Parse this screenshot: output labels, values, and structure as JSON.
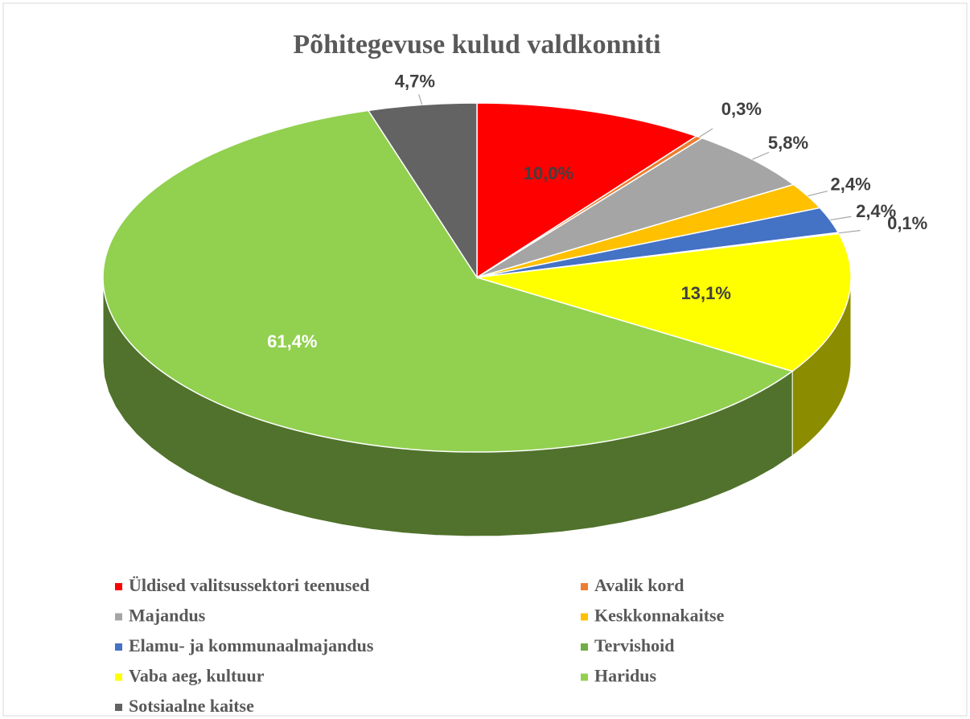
{
  "chart_data": {
    "type": "pie3d",
    "title": "Põhitegevuse kulud valdkonniti",
    "categories": [
      "Üldised valitsussektori teenused",
      "Avalik kord",
      "Majandus",
      "Keskkonnakaitse",
      "Elamu- ja kommunaalmajandus",
      "Tervishoid",
      "Vaba aeg, kultuur",
      "Haridus",
      "Sotsiaalne kaitse"
    ],
    "values": [
      10.0,
      0.3,
      5.8,
      2.4,
      2.4,
      0.1,
      13.1,
      61.4,
      4.7
    ],
    "value_labels": [
      "10,0%",
      "0,3%",
      "5,8%",
      "2,4%",
      "2,4%",
      "0,1%",
      "13,1%",
      "61,4%",
      "4,7%"
    ],
    "colors": [
      "#ff0000",
      "#ed7d31",
      "#a5a5a5",
      "#ffc000",
      "#4472c4",
      "#70ad47",
      "#ffff00",
      "#92d050",
      "#636363"
    ],
    "legend": "bottom"
  }
}
